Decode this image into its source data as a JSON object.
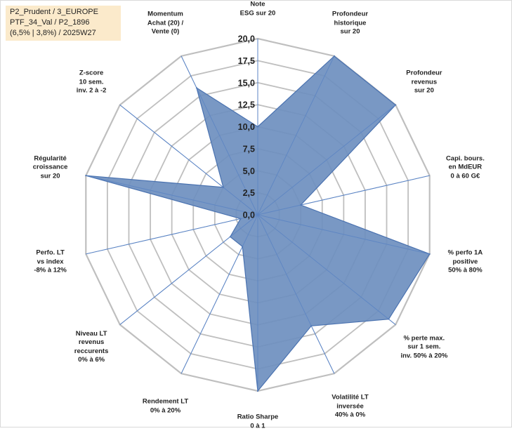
{
  "info": {
    "line1": "P2_Prudent / 3_EUROPE",
    "line2": "PTF_34_Val / P2_1896",
    "line3": "(6,5% | 3,8%) / 2025W27"
  },
  "chart_data": {
    "type": "radar",
    "title": "",
    "categories": [
      [
        "Note",
        "ESG sur 20"
      ],
      [
        "Profondeur",
        "historique",
        "sur 20"
      ],
      [
        "Profondeur",
        "revenus",
        "sur 20"
      ],
      [
        "Capi. bours.",
        "en MdEUR",
        "0 à 60 G€"
      ],
      [
        "% perfo 1A",
        "positive",
        "50% à 80%"
      ],
      [
        "% perte max.",
        "sur 1 sem.",
        "inv. 50% à 20%"
      ],
      [
        "Volatilité LT",
        "inversée",
        "40% à 0%"
      ],
      [
        "Ratio Sharpe",
        "0 à 1"
      ],
      [
        "Rendement LT",
        "0% à 20%"
      ],
      [
        "Niveau LT",
        "revenus",
        "reccurents",
        "0% à 6%"
      ],
      [
        "Perfo. LT",
        "vs index",
        "-8% à 12%"
      ],
      [
        "Régularité",
        "croissance",
        "sur 20"
      ],
      [
        "Z-score",
        "10 sem.",
        "inv. 2 à -2"
      ],
      [
        "Momentum",
        "Achat (20) /",
        "Vente (0)"
      ]
    ],
    "values": [
      10,
      20,
      20,
      5,
      20,
      19,
      14,
      20,
      4,
      4,
      2,
      20,
      5,
      16
    ],
    "ylim": [
      0,
      20
    ],
    "ticks": [
      "0,0",
      "2,5",
      "5,0",
      "7,5",
      "10,0",
      "12,5",
      "15,0",
      "17,5",
      "20,0"
    ],
    "grid": true,
    "legend": "none",
    "colors": {
      "fill": "#6e8fbf",
      "stroke": "#4a72b0",
      "grid": "#bfbfbf",
      "axis": "#5b84c4"
    }
  }
}
